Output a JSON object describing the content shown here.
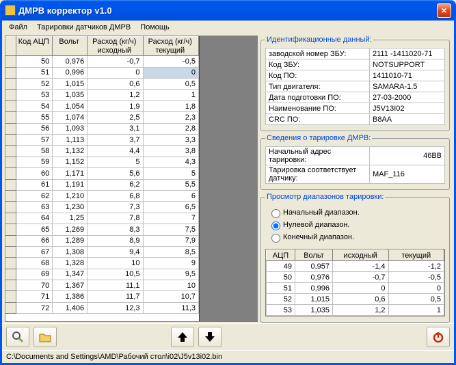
{
  "window": {
    "title": "ДМРВ корректор v1.0"
  },
  "menu": {
    "file": "Файл",
    "tari": "Тарировки датчиков ДМРВ",
    "help": "Помощь"
  },
  "main_table": {
    "headers": {
      "c0": "Код АЦП",
      "c1": "Вольт",
      "c2": "Расход (кг/ч)\nисходный",
      "c3": "Расход (кг/ч)\nтекущий"
    },
    "selected_cell": "0",
    "partial_row": {
      "c0": "72",
      "c1": "1,406",
      "c2": "12,3",
      "c3": "11,3"
    },
    "rows": [
      {
        "c0": "50",
        "c1": "0,976",
        "c2": "-0,7",
        "c3": "-0,5"
      },
      {
        "c0": "51",
        "c1": "0,996",
        "c2": "0",
        "c3": "0"
      },
      {
        "c0": "52",
        "c1": "1,015",
        "c2": "0,6",
        "c3": "0,5"
      },
      {
        "c0": "53",
        "c1": "1,035",
        "c2": "1,2",
        "c3": "1"
      },
      {
        "c0": "54",
        "c1": "1,054",
        "c2": "1,9",
        "c3": "1,8"
      },
      {
        "c0": "55",
        "c1": "1,074",
        "c2": "2,5",
        "c3": "2,3"
      },
      {
        "c0": "56",
        "c1": "1,093",
        "c2": "3,1",
        "c3": "2,8"
      },
      {
        "c0": "57",
        "c1": "1,113",
        "c2": "3,7",
        "c3": "3,3"
      },
      {
        "c0": "58",
        "c1": "1,132",
        "c2": "4,4",
        "c3": "3,8"
      },
      {
        "c0": "59",
        "c1": "1,152",
        "c2": "5",
        "c3": "4,3"
      },
      {
        "c0": "60",
        "c1": "1,171",
        "c2": "5,6",
        "c3": "5"
      },
      {
        "c0": "61",
        "c1": "1,191",
        "c2": "6,2",
        "c3": "5,5"
      },
      {
        "c0": "62",
        "c1": "1,210",
        "c2": "6,8",
        "c3": "6"
      },
      {
        "c0": "63",
        "c1": "1,230",
        "c2": "7,3",
        "c3": "6,5"
      },
      {
        "c0": "64",
        "c1": "1,25",
        "c2": "7,8",
        "c3": "7"
      },
      {
        "c0": "65",
        "c1": "1,269",
        "c2": "8,3",
        "c3": "7,5"
      },
      {
        "c0": "66",
        "c1": "1,289",
        "c2": "8,9",
        "c3": "7,9"
      },
      {
        "c0": "67",
        "c1": "1,308",
        "c2": "9,4",
        "c3": "8,5"
      },
      {
        "c0": "68",
        "c1": "1,328",
        "c2": "10",
        "c3": "9"
      },
      {
        "c0": "69",
        "c1": "1,347",
        "c2": "10,5",
        "c3": "9,5"
      },
      {
        "c0": "70",
        "c1": "1,367",
        "c2": "11,1",
        "c3": "10"
      },
      {
        "c0": "71",
        "c1": "1,386",
        "c2": "11,7",
        "c3": "10,7"
      },
      {
        "c0": "72",
        "c1": "1,406",
        "c2": "12,3",
        "c3": "11,3"
      }
    ]
  },
  "ident": {
    "legend": "Идентификационные данный:",
    "rows": [
      {
        "k": "заводской номер ЗБУ:",
        "v": "2111 -1411020-71"
      },
      {
        "k": "Код ЗБУ:",
        "v": "NOTSUPPORT"
      },
      {
        "k": "Код ПО:",
        "v": "1411010-71"
      },
      {
        "k": "Тип двигателя:",
        "v": "SAMARA-1.5"
      },
      {
        "k": "Дата подготовки ПО:",
        "v": "27-03-2000"
      },
      {
        "k": "Наименование ПО:",
        "v": "J5V13I02"
      },
      {
        "k": "CRC ПО:",
        "v": "B8AA"
      }
    ]
  },
  "tariinfo": {
    "legend": "Сведения о тарировке ДМРВ:",
    "rows": [
      {
        "k": "Начальный адрес тарировки:",
        "v": "46BB"
      },
      {
        "k": "Тарировка соответствует датчику:",
        "v": "MAF_116"
      }
    ]
  },
  "ranges": {
    "legend": "Просмотр диапазонов тарировки:",
    "opt1": "Начальный диапазон.",
    "opt2": "Нулевой диапазон.",
    "opt3": "Конечный диапазон.",
    "headers": {
      "c0": "АЦП",
      "c1": "Вольт",
      "c2": "исходный",
      "c3": "текущий"
    },
    "rows": [
      {
        "c0": "49",
        "c1": "0,957",
        "c2": "-1,4",
        "c3": "-1,2"
      },
      {
        "c0": "50",
        "c1": "0,976",
        "c2": "-0,7",
        "c3": "-0,5"
      },
      {
        "c0": "51",
        "c1": "0,996",
        "c2": "0",
        "c3": "0"
      },
      {
        "c0": "52",
        "c1": "1,015",
        "c2": "0,6",
        "c3": "0,5"
      },
      {
        "c0": "53",
        "c1": "1,035",
        "c2": "1,2",
        "c3": "1"
      }
    ]
  },
  "status": {
    "path": "C:\\Documents and Settings\\AMD\\Рабочий стол\\i02\\J5v13i02.bin"
  }
}
